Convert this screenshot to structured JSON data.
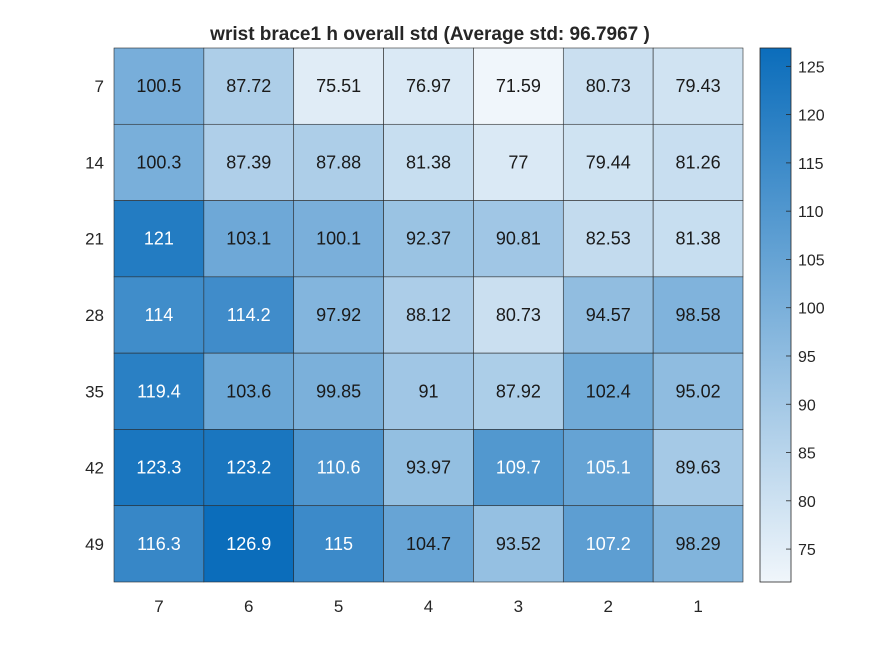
{
  "chart_data": {
    "type": "heatmap",
    "title": "wrist brace1 h overall std (Average std: 96.7967 )",
    "x_categories": [
      "7",
      "6",
      "5",
      "4",
      "3",
      "2",
      "1"
    ],
    "y_categories": [
      "7",
      "14",
      "21",
      "28",
      "35",
      "42",
      "49"
    ],
    "values": [
      [
        100.5,
        87.72,
        75.51,
        76.97,
        71.59,
        80.73,
        79.43
      ],
      [
        100.3,
        87.39,
        87.88,
        81.38,
        77,
        79.44,
        81.26
      ],
      [
        121,
        103.1,
        100.1,
        92.37,
        90.81,
        82.53,
        81.38
      ],
      [
        114,
        114.2,
        97.92,
        88.12,
        80.73,
        94.57,
        98.58
      ],
      [
        119.4,
        103.6,
        99.85,
        91,
        87.92,
        102.4,
        95.02
      ],
      [
        123.3,
        123.2,
        110.6,
        93.97,
        109.7,
        105.1,
        89.63
      ],
      [
        116.3,
        126.9,
        115,
        104.7,
        93.52,
        107.2,
        98.29
      ]
    ],
    "colorbar": {
      "min": 71.59,
      "max": 126.9,
      "ticks": [
        "75",
        "80",
        "85",
        "90",
        "95",
        "100",
        "105",
        "110",
        "115",
        "120",
        "125"
      ],
      "color_low": "#f0f6fb",
      "color_high": "#0b6dbb"
    },
    "label_color_dark": "#1a1a1a",
    "label_color_light": "#ffffff",
    "grid": true
  }
}
